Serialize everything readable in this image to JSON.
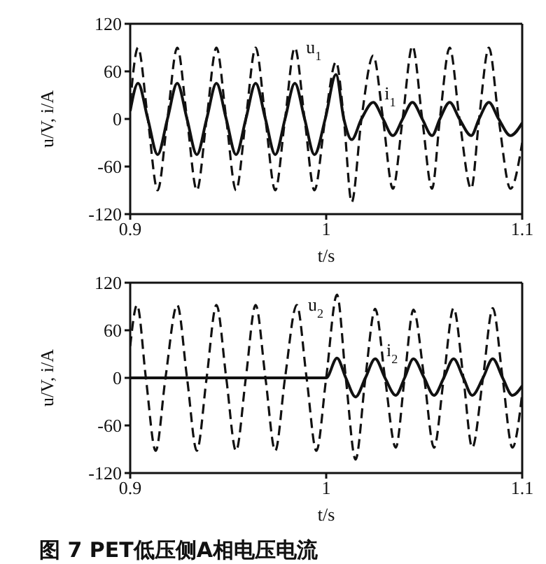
{
  "chart_data": [
    {
      "type": "line",
      "xlabel": "t/s",
      "ylabel": "u/V, i/A",
      "xlim": [
        0.9,
        1.1
      ],
      "xticks": [
        0.9,
        1,
        1.1
      ],
      "ylim": [
        -120,
        120
      ],
      "yticks": [
        -120,
        -60,
        0,
        60,
        120
      ],
      "series": [
        {
          "name": "u$_{1}$",
          "color": "#111111",
          "line_style": "dashed",
          "x": [
            0.9,
            0.904,
            0.909,
            0.914,
            0.919,
            0.924,
            0.929,
            0.934,
            0.939,
            0.944,
            0.949,
            0.954,
            0.959,
            0.964,
            0.969,
            0.974,
            0.979,
            0.984,
            0.989,
            0.994,
            0.9995,
            1.005,
            1.009,
            1.013,
            1.018,
            1.024,
            1.029,
            1.034,
            1.039,
            1.044,
            1.049,
            1.054,
            1.058,
            1.063,
            1.068,
            1.074,
            1.078,
            1.083,
            1.088,
            1.094,
            1.1
          ],
          "values": [
            20,
            90,
            0,
            -90,
            0,
            90,
            0,
            -90,
            0,
            90,
            0,
            -90,
            0,
            90,
            0,
            -90,
            0,
            90,
            0,
            -90,
            0,
            72,
            0,
            -105,
            0,
            80,
            0,
            -88,
            0,
            92,
            0,
            -88,
            0,
            90,
            0,
            -88,
            0,
            90,
            0,
            -88,
            -30
          ]
        },
        {
          "name": "i$_{1}$",
          "color": "#111111",
          "line_style": "solid",
          "x": [
            0.9,
            0.904,
            0.909,
            0.914,
            0.919,
            0.924,
            0.929,
            0.934,
            0.939,
            0.944,
            0.949,
            0.954,
            0.959,
            0.964,
            0.969,
            0.974,
            0.979,
            0.984,
            0.989,
            0.994,
            0.9995,
            1.005,
            1.009,
            1.013,
            1.018,
            1.024,
            1.029,
            1.034,
            1.039,
            1.044,
            1.049,
            1.054,
            1.058,
            1.063,
            1.068,
            1.074,
            1.078,
            1.083,
            1.088,
            1.094,
            1.1
          ],
          "values": [
            10,
            45,
            0,
            -45,
            0,
            45,
            0,
            -45,
            0,
            45,
            0,
            -45,
            0,
            45,
            0,
            -45,
            0,
            45,
            0,
            -45,
            0,
            56,
            0,
            -26,
            0,
            21,
            0,
            -21,
            0,
            21,
            0,
            -21,
            0,
            21,
            0,
            -21,
            0,
            21,
            0,
            -21,
            -5
          ]
        }
      ]
    },
    {
      "type": "line",
      "xlabel": "t/s",
      "ylabel": "u/V, i/A",
      "xlim": [
        0.9,
        1.1
      ],
      "xticks": [
        0.9,
        1,
        1.1
      ],
      "ylim": [
        -120,
        120
      ],
      "yticks": [
        -120,
        -60,
        0,
        60,
        120
      ],
      "series": [
        {
          "name": "u$_{2}$",
          "color": "#111111",
          "line_style": "dashed",
          "x": [
            0.9,
            0.9035,
            0.908,
            0.913,
            0.918,
            0.924,
            0.929,
            0.934,
            0.939,
            0.944,
            0.949,
            0.954,
            0.959,
            0.964,
            0.969,
            0.974,
            0.979,
            0.985,
            0.99,
            0.995,
            1.0,
            1.0055,
            1.01,
            1.015,
            1.02,
            1.025,
            1.03,
            1.0355,
            1.04,
            1.0445,
            1.05,
            1.055,
            1.06,
            1.065,
            1.07,
            1.0745,
            1.08,
            1.085,
            1.09,
            1.095,
            1.1
          ],
          "values": [
            40,
            92,
            0,
            -92,
            0,
            92,
            0,
            -92,
            0,
            92,
            0,
            -92,
            0,
            92,
            0,
            -92,
            0,
            92,
            0,
            -92,
            0,
            105,
            0,
            -103,
            0,
            87,
            0,
            -88,
            0,
            86,
            0,
            -88,
            0,
            88,
            0,
            -88,
            0,
            88,
            0,
            -88,
            -20
          ]
        },
        {
          "name": "i$_{2}$",
          "color": "#111111",
          "line_style": "solid",
          "x": [
            0.9,
            1.0,
            1.0055,
            1.01,
            1.015,
            1.02,
            1.025,
            1.03,
            1.0355,
            1.04,
            1.0445,
            1.05,
            1.055,
            1.06,
            1.065,
            1.07,
            1.0745,
            1.08,
            1.085,
            1.09,
            1.095,
            1.1
          ],
          "values": [
            0,
            0,
            25,
            0,
            -24,
            0,
            24,
            0,
            -22,
            0,
            24,
            0,
            -22,
            0,
            24,
            0,
            -22,
            0,
            24,
            0,
            -22,
            -10
          ]
        }
      ],
      "annotations": [
        "图 7 PET低压侧A相电压电流"
      ]
    }
  ]
}
